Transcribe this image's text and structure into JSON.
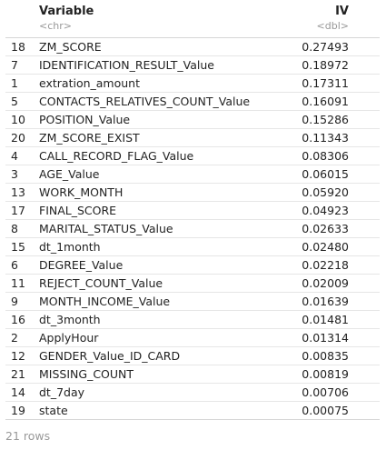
{
  "table": {
    "columns": [
      {
        "name": "Variable",
        "type": "<chr>"
      },
      {
        "name": "IV",
        "type": "<dbl>"
      }
    ],
    "rows": [
      {
        "index": "18",
        "variable": "ZM_SCORE",
        "iv": "0.27493"
      },
      {
        "index": "7",
        "variable": "IDENTIFICATION_RESULT_Value",
        "iv": "0.18972"
      },
      {
        "index": "1",
        "variable": "extration_amount",
        "iv": "0.17311"
      },
      {
        "index": "5",
        "variable": "CONTACTS_RELATIVES_COUNT_Value",
        "iv": "0.16091"
      },
      {
        "index": "10",
        "variable": "POSITION_Value",
        "iv": "0.15286"
      },
      {
        "index": "20",
        "variable": "ZM_SCORE_EXIST",
        "iv": "0.11343"
      },
      {
        "index": "4",
        "variable": "CALL_RECORD_FLAG_Value",
        "iv": "0.08306"
      },
      {
        "index": "3",
        "variable": "AGE_Value",
        "iv": "0.06015"
      },
      {
        "index": "13",
        "variable": "WORK_MONTH",
        "iv": "0.05920"
      },
      {
        "index": "17",
        "variable": "FINAL_SCORE",
        "iv": "0.04923"
      },
      {
        "index": "8",
        "variable": "MARITAL_STATUS_Value",
        "iv": "0.02633"
      },
      {
        "index": "15",
        "variable": "dt_1month",
        "iv": "0.02480"
      },
      {
        "index": "6",
        "variable": "DEGREE_Value",
        "iv": "0.02218"
      },
      {
        "index": "11",
        "variable": "REJECT_COUNT_Value",
        "iv": "0.02009"
      },
      {
        "index": "9",
        "variable": "MONTH_INCOME_Value",
        "iv": "0.01639"
      },
      {
        "index": "16",
        "variable": "dt_3month",
        "iv": "0.01481"
      },
      {
        "index": "2",
        "variable": "ApplyHour",
        "iv": "0.01314"
      },
      {
        "index": "12",
        "variable": "GENDER_Value_ID_CARD",
        "iv": "0.00835"
      },
      {
        "index": "21",
        "variable": "MISSING_COUNT",
        "iv": "0.00819"
      },
      {
        "index": "14",
        "variable": "dt_7day",
        "iv": "0.00706"
      },
      {
        "index": "19",
        "variable": "state",
        "iv": "0.00075"
      }
    ]
  },
  "footer": {
    "row_count_label": "21 rows"
  }
}
